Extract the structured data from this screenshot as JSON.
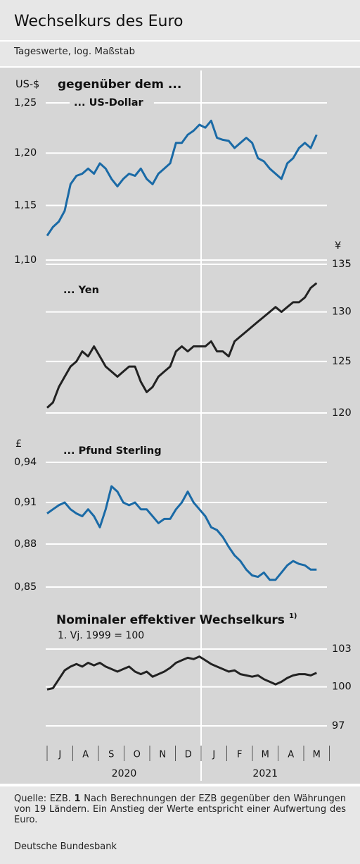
{
  "header": {
    "title": "Wechselkurs des Euro",
    "subtitle": "Tageswerte, log. Maßstab"
  },
  "group_title": "gegenüber dem ...",
  "chart_data": [
    {
      "type": "line",
      "unit": "US-$",
      "axis_side": "left",
      "log": true,
      "ylim": [
        1.1,
        1.25
      ],
      "yticks": [
        {
          "value": 1.25,
          "label": "1,25"
        },
        {
          "value": 1.2,
          "label": "1,20"
        },
        {
          "value": 1.15,
          "label": "1,15"
        },
        {
          "value": 1.1,
          "label": "1,10"
        }
      ],
      "series": [
        {
          "name": "... US-Dollar",
          "color": "#1a6aa6",
          "values": [
            1.122,
            1.13,
            1.135,
            1.145,
            1.17,
            1.178,
            1.18,
            1.185,
            1.18,
            1.19,
            1.185,
            1.175,
            1.168,
            1.175,
            1.18,
            1.178,
            1.185,
            1.175,
            1.17,
            1.18,
            1.185,
            1.19,
            1.21,
            1.21,
            1.218,
            1.222,
            1.228,
            1.225,
            1.232,
            1.215,
            1.213,
            1.212,
            1.205,
            1.21,
            1.215,
            1.21,
            1.195,
            1.192,
            1.185,
            1.18,
            1.175,
            1.19,
            1.195,
            1.205,
            1.21,
            1.205,
            1.218
          ]
        }
      ]
    },
    {
      "type": "line",
      "unit": "¥",
      "axis_side": "right",
      "log": true,
      "ylim": [
        120,
        135
      ],
      "yticks": [
        135,
        130,
        125,
        120
      ],
      "series": [
        {
          "name": "... Yen",
          "color": "#222222",
          "values": [
            120.5,
            121,
            122.5,
            123.5,
            124.5,
            125,
            126,
            125.5,
            126.5,
            125.5,
            124.5,
            124,
            123.5,
            124,
            124.5,
            124.5,
            123,
            122,
            122.5,
            123.5,
            124,
            124.5,
            126,
            126.5,
            126,
            126.5,
            126.5,
            126.5,
            127,
            126,
            126,
            125.5,
            127,
            127.5,
            128,
            128.5,
            129,
            129.5,
            130,
            130.5,
            130,
            130.5,
            131,
            131,
            131.5,
            132.5,
            133
          ]
        }
      ]
    },
    {
      "type": "line",
      "unit": "£",
      "axis_side": "left",
      "log": true,
      "ylim": [
        0.85,
        0.94
      ],
      "yticks": [
        {
          "value": 0.94,
          "label": "0,94"
        },
        {
          "value": 0.91,
          "label": "0,91"
        },
        {
          "value": 0.88,
          "label": "0,88"
        },
        {
          "value": 0.85,
          "label": "0,85"
        }
      ],
      "series": [
        {
          "name": "... Pfund Sterling",
          "color": "#1a6aa6",
          "values": [
            0.902,
            0.905,
            0.908,
            0.91,
            0.905,
            0.902,
            0.9,
            0.905,
            0.9,
            0.892,
            0.905,
            0.922,
            0.918,
            0.91,
            0.908,
            0.91,
            0.905,
            0.905,
            0.9,
            0.895,
            0.898,
            0.898,
            0.905,
            0.91,
            0.918,
            0.91,
            0.905,
            0.9,
            0.892,
            0.89,
            0.885,
            0.878,
            0.872,
            0.868,
            0.862,
            0.858,
            0.857,
            0.86,
            0.855,
            0.855,
            0.86,
            0.865,
            0.868,
            0.866,
            0.865,
            0.862,
            0.862
          ]
        }
      ]
    },
    {
      "type": "line",
      "title": "Nominaler effektiver Wechselkurs",
      "title_note": "1)",
      "subtitle": "1. Vj. 1999 = 100",
      "axis_side": "right",
      "log": true,
      "ylim": [
        97,
        103
      ],
      "yticks": [
        103,
        100,
        97
      ],
      "series": [
        {
          "color": "#222222",
          "values": [
            99.8,
            99.9,
            100.6,
            101.3,
            101.6,
            101.8,
            101.6,
            101.9,
            101.7,
            101.9,
            101.6,
            101.4,
            101.2,
            101.4,
            101.6,
            101.2,
            101,
            101.2,
            100.8,
            101,
            101.2,
            101.5,
            101.9,
            102.1,
            102.3,
            102.2,
            102.4,
            102.1,
            101.8,
            101.6,
            101.4,
            101.2,
            101.3,
            101,
            100.9,
            100.8,
            100.9,
            100.6,
            100.4,
            100.2,
            100.4,
            100.7,
            100.9,
            101,
            101,
            100.9,
            101.1
          ]
        }
      ]
    }
  ],
  "x_axis": {
    "categories": [
      "J",
      "A",
      "S",
      "O",
      "N",
      "D",
      "J",
      "F",
      "M",
      "A",
      "M"
    ],
    "years": [
      "2020",
      "2021"
    ]
  },
  "footer": {
    "source": "Quelle: EZB.",
    "note_number": "1",
    "note_text": "Nach Berechnungen der EZB gegenüber den Währungen von 19 Ländern. Ein Anstieg der Werte entspricht einer Aufwertung des Euro.",
    "publisher": "Deutsche Bundesbank"
  }
}
